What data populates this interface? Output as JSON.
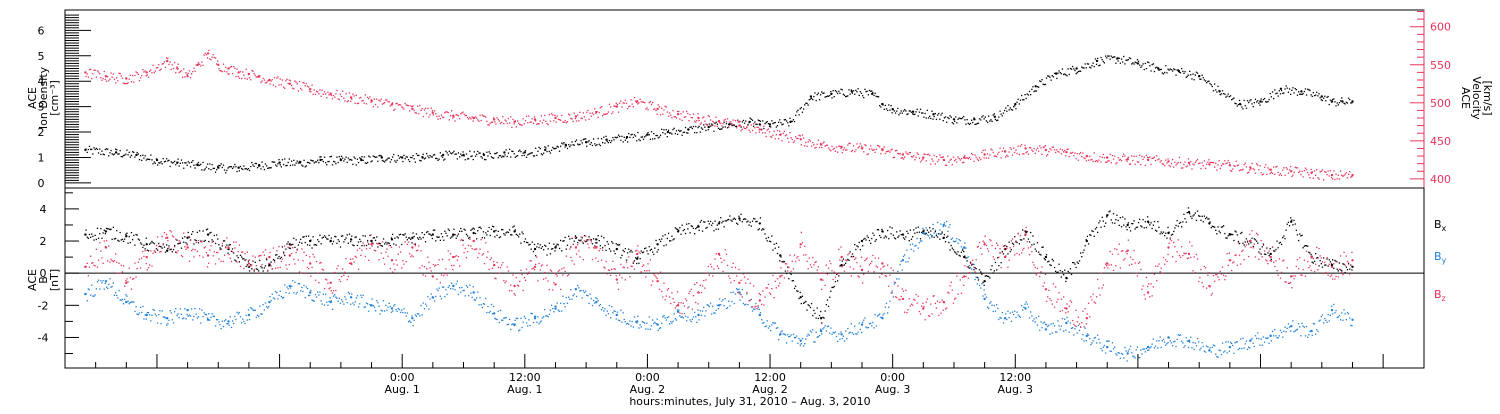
{
  "chart_data": [
    {
      "type": "scatter",
      "panel": "top",
      "ylabel_left": [
        "ACE",
        "Ion Density",
        "[cm⁻³]"
      ],
      "ylabel_right": [
        "ACE",
        "Velocity",
        "[km/s]"
      ],
      "ylim_left": [
        -0.2,
        6.8
      ],
      "ylim_right": [
        388,
        622
      ],
      "yticks_left": [
        0,
        1,
        2,
        3,
        4,
        5,
        6
      ],
      "yticks_right": [
        400,
        450,
        500,
        550,
        600
      ],
      "colors": {
        "density": "#000000",
        "velocity": "#e8335a"
      },
      "series": [
        {
          "key": "density",
          "color": "#000000",
          "x": [
            -31,
            -28,
            -26,
            -24,
            -22,
            -20,
            -18,
            -16,
            -14,
            -12,
            -10,
            -8,
            -6,
            -4,
            -2,
            0,
            2,
            4,
            6,
            8,
            10,
            12,
            14,
            16,
            18,
            20,
            22,
            24,
            26,
            28,
            30,
            32,
            34,
            35,
            36,
            38,
            40,
            42,
            44,
            46,
            47,
            48,
            50,
            52,
            54,
            56,
            58,
            60,
            62,
            64,
            66,
            68,
            70,
            72,
            74,
            76,
            78,
            80,
            82,
            84,
            86,
            88,
            90,
            91,
            92,
            93
          ],
          "y": [
            1.3,
            1.2,
            1.1,
            0.9,
            0.8,
            0.7,
            0.6,
            0.6,
            0.7,
            0.8,
            0.8,
            0.9,
            0.9,
            0.9,
            1.0,
            1.0,
            1.0,
            1.1,
            1.1,
            1.1,
            1.2,
            1.2,
            1.3,
            1.5,
            1.6,
            1.7,
            1.8,
            1.9,
            2.0,
            2.1,
            2.2,
            2.3,
            2.4,
            2.3,
            2.3,
            2.4,
            3.4,
            3.5,
            3.6,
            3.5,
            3.1,
            2.9,
            2.8,
            2.7,
            2.5,
            2.5,
            2.6,
            3.1,
            3.8,
            4.3,
            4.5,
            4.8,
            4.9,
            4.7,
            4.5,
            4.4,
            4.2,
            3.6,
            3.1,
            3.2,
            3.7,
            3.6,
            3.4,
            3.2,
            3.2,
            3.2
          ]
        },
        {
          "key": "velocity",
          "color": "#e8335a",
          "x": [
            -31,
            -29,
            -27,
            -25,
            -23,
            -22,
            -21,
            -20,
            -19,
            -18,
            -17,
            -16,
            -15,
            -14,
            -13,
            -11,
            -9,
            -7,
            -5,
            -3,
            -1,
            1,
            3,
            5,
            7,
            9,
            11,
            13,
            15,
            17,
            19,
            21,
            23,
            25,
            27,
            29,
            31,
            33,
            35,
            37,
            39,
            41,
            43,
            45,
            47,
            49,
            51,
            53,
            55,
            57,
            59,
            61,
            63,
            65,
            67,
            69,
            71,
            73,
            75,
            77,
            79,
            81,
            83,
            85,
            87,
            89,
            91,
            93
          ],
          "y": [
            540,
            535,
            532,
            540,
            555,
            545,
            535,
            550,
            565,
            550,
            545,
            540,
            538,
            535,
            530,
            525,
            518,
            512,
            507,
            503,
            498,
            492,
            487,
            483,
            480,
            478,
            475,
            478,
            480,
            482,
            488,
            495,
            502,
            492,
            485,
            480,
            476,
            470,
            465,
            458,
            452,
            445,
            442,
            440,
            438,
            432,
            428,
            425,
            428,
            432,
            436,
            440,
            438,
            435,
            430,
            428,
            426,
            425,
            423,
            421,
            419,
            418,
            415,
            412,
            410,
            408,
            405,
            405
          ]
        }
      ]
    },
    {
      "type": "scatter",
      "panel": "bottom",
      "ylabel": [
        "ACE",
        "B",
        "[nT]"
      ],
      "ylim": [
        -5.9,
        5.3
      ],
      "yticks": [
        -4,
        -2,
        0,
        2,
        4
      ],
      "zero_line": true,
      "legend": [
        {
          "label": "B",
          "sub": "x",
          "color": "#000000"
        },
        {
          "label": "B",
          "sub": "y",
          "color": "#1f7fd6"
        },
        {
          "label": "B",
          "sub": "z",
          "color": "#e8335a"
        }
      ],
      "series": [
        {
          "key": "Bx",
          "color": "#000000",
          "x": [
            -31,
            -29,
            -27,
            -25,
            -23,
            -21,
            -19,
            -17,
            -15,
            -13,
            -11,
            -9,
            -7,
            -5,
            -3,
            -1,
            1,
            3,
            5,
            7,
            9,
            11,
            13,
            15,
            17,
            19,
            21,
            23,
            25,
            27,
            29,
            31,
            33,
            35,
            37,
            39,
            41,
            43,
            45,
            47,
            49,
            51,
            53,
            55,
            57,
            59,
            61,
            63,
            65,
            67,
            69,
            71,
            73,
            75,
            77,
            79,
            81,
            83,
            85,
            87,
            89,
            91,
            93
          ],
          "y": [
            2.4,
            2.6,
            2.3,
            1.8,
            1.4,
            2.2,
            2.4,
            1.5,
            0.4,
            0.5,
            1.8,
            2.0,
            2.0,
            2.1,
            2.0,
            2.1,
            2.2,
            2.4,
            2.4,
            2.5,
            2.6,
            2.6,
            1.5,
            1.6,
            2.2,
            2.1,
            1.5,
            0.9,
            1.8,
            2.6,
            2.9,
            3.1,
            3.4,
            3.1,
            1.1,
            -1.5,
            -2.8,
            0.5,
            2.0,
            2.6,
            2.4,
            2.6,
            2.2,
            1.0,
            -0.5,
            1.5,
            2.6,
            1.0,
            -0.3,
            2.0,
            3.6,
            3.0,
            3.2,
            2.5,
            3.8,
            3.1,
            2.4,
            2.0,
            1.2,
            3.2,
            1.0,
            0.5,
            0.4
          ]
        },
        {
          "key": "By",
          "color": "#1f7fd6",
          "x": [
            -31,
            -29,
            -27,
            -25,
            -23,
            -21,
            -19,
            -17,
            -15,
            -13,
            -11,
            -9,
            -7,
            -5,
            -3,
            -1,
            1,
            3,
            5,
            7,
            9,
            11,
            13,
            15,
            17,
            19,
            21,
            23,
            25,
            27,
            29,
            31,
            33,
            35,
            37,
            39,
            41,
            43,
            45,
            47,
            49,
            51,
            53,
            55,
            57,
            59,
            61,
            63,
            65,
            67,
            69,
            71,
            73,
            75,
            77,
            79,
            81,
            83,
            85,
            87,
            89,
            91,
            93
          ],
          "y": [
            -1.3,
            -0.5,
            -1.8,
            -2.6,
            -2.8,
            -2.3,
            -2.9,
            -3.0,
            -2.6,
            -1.8,
            -0.8,
            -1.2,
            -1.8,
            -1.5,
            -2.0,
            -2.2,
            -2.8,
            -1.5,
            -0.8,
            -1.2,
            -2.5,
            -3.2,
            -2.8,
            -2.2,
            -1.0,
            -1.8,
            -2.6,
            -3.0,
            -3.2,
            -2.4,
            -2.6,
            -2.0,
            -1.2,
            -2.6,
            -3.8,
            -4.2,
            -3.6,
            -3.8,
            -3.2,
            -2.8,
            0.8,
            2.5,
            3.0,
            1.6,
            -1.6,
            -2.8,
            -2.2,
            -3.5,
            -3.1,
            -3.9,
            -4.6,
            -5.0,
            -4.6,
            -4.0,
            -4.2,
            -4.8,
            -4.6,
            -4.2,
            -3.9,
            -3.3,
            -3.6,
            -2.3,
            -2.9
          ]
        },
        {
          "key": "Bz",
          "color": "#e8335a",
          "x": [
            -31,
            -29,
            -27,
            -25,
            -23,
            -21,
            -19,
            -17,
            -15,
            -13,
            -11,
            -9,
            -7,
            -5,
            -3,
            -1,
            1,
            3,
            5,
            7,
            9,
            11,
            13,
            15,
            17,
            19,
            21,
            23,
            25,
            27,
            29,
            31,
            33,
            35,
            37,
            39,
            41,
            43,
            45,
            47,
            49,
            51,
            53,
            55,
            57,
            59,
            61,
            63,
            65,
            67,
            69,
            71,
            73,
            75,
            77,
            79,
            81,
            83,
            85,
            87,
            89,
            91,
            93
          ],
          "y": [
            0.4,
            1.6,
            -0.6,
            1.0,
            2.2,
            1.6,
            1.1,
            1.6,
            0.6,
            1.0,
            1.1,
            0.6,
            -0.6,
            0.6,
            1.8,
            0.8,
            1.6,
            -0.2,
            1.0,
            2.0,
            0.5,
            -0.8,
            0.4,
            -0.7,
            1.6,
            1.6,
            -0.4,
            1.2,
            -0.5,
            -2.0,
            -1.2,
            1.2,
            -0.6,
            -1.7,
            -0.2,
            1.8,
            -0.4,
            1.0,
            0.2,
            0.6,
            -1.6,
            -2.2,
            -1.8,
            -0.2,
            1.8,
            1.0,
            2.4,
            -1.0,
            -2.2,
            -2.8,
            0.6,
            1.4,
            -1.2,
            1.6,
            1.2,
            -0.8,
            0.8,
            2.0,
            1.0,
            -0.2,
            1.0,
            0.4,
            0.8
          ]
        }
      ]
    }
  ],
  "time_axis": {
    "xlim": [
      -33,
      100
    ],
    "ticks": [
      {
        "time": "0:00",
        "date": "Aug. 1",
        "hours": 0
      },
      {
        "time": "12:00",
        "date": "Aug. 1",
        "hours": 12
      },
      {
        "time": "0:00",
        "date": "Aug. 2",
        "hours": 24
      },
      {
        "time": "12:00",
        "date": "Aug. 2",
        "hours": 36
      },
      {
        "time": "0:00",
        "date": "Aug. 3",
        "hours": 48
      },
      {
        "time": "12:00",
        "date": "Aug. 3",
        "hours": 60
      }
    ],
    "label": "hours:minutes, July 31, 2010 – Aug.  3, 2010"
  }
}
